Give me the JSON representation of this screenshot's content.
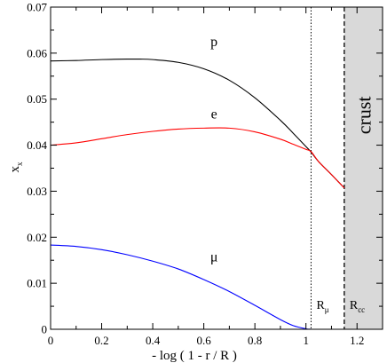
{
  "chart_data": {
    "type": "line",
    "xlabel": "- log ( 1 - r / R )",
    "ylabel": "x",
    "ylabel_sub": "x",
    "xlim": [
      0,
      1.3
    ],
    "ylim": [
      0,
      0.07
    ],
    "x_ticks": [
      0,
      0.2,
      0.4,
      0.6,
      0.8,
      1,
      1.2
    ],
    "x_tick_labels": [
      "0",
      "0.2",
      "0.4",
      "0.6",
      "0.8",
      "1",
      "1.2"
    ],
    "y_ticks": [
      0,
      0.01,
      0.02,
      0.03,
      0.04,
      0.05,
      0.06,
      0.07
    ],
    "y_tick_labels": [
      "0",
      "0.01",
      "0.02",
      "0.03",
      "0.04",
      "0.05",
      "0.06",
      "0.07"
    ],
    "grid": false,
    "series": [
      {
        "name": "p",
        "color": "#000000",
        "x": [
          0,
          0.1,
          0.2,
          0.3,
          0.35,
          0.4,
          0.5,
          0.6,
          0.7,
          0.8,
          0.9,
          0.95,
          1.0,
          1.02,
          1.05,
          1.1,
          1.15
        ],
        "y": [
          0.0583,
          0.0584,
          0.0586,
          0.0587,
          0.0587,
          0.0586,
          0.058,
          0.0566,
          0.0541,
          0.0503,
          0.0454,
          0.0426,
          0.0397,
          0.0385,
          0.0364,
          0.0336,
          0.0307
        ]
      },
      {
        "name": "e",
        "color": "#ff0000",
        "x": [
          0,
          0.1,
          0.2,
          0.3,
          0.4,
          0.5,
          0.6,
          0.7,
          0.8,
          0.9,
          0.95,
          1.0,
          1.02,
          1.05,
          1.1,
          1.15
        ],
        "y": [
          0.04,
          0.0405,
          0.0414,
          0.0423,
          0.043,
          0.0435,
          0.0437,
          0.0437,
          0.0429,
          0.0413,
          0.0402,
          0.0391,
          0.0386,
          0.0364,
          0.0336,
          0.0307
        ]
      },
      {
        "name": "μ",
        "color": "#0000ff",
        "x": [
          0,
          0.1,
          0.2,
          0.3,
          0.4,
          0.5,
          0.6,
          0.7,
          0.8,
          0.9,
          0.95,
          1.0,
          1.02
        ],
        "y": [
          0.0183,
          0.018,
          0.0173,
          0.0162,
          0.0148,
          0.0131,
          0.0108,
          0.0082,
          0.0052,
          0.0021,
          0.0008,
          0.0001,
          0
        ]
      }
    ],
    "markers": [
      {
        "x": 1.02,
        "style": "dotted",
        "label": "R",
        "sub": "μ"
      },
      {
        "x": 1.15,
        "style": "dashed",
        "label": "R",
        "sub": "cc"
      }
    ],
    "shaded_region": {
      "x_from": 1.15,
      "x_to": 1.3,
      "color": "#d9d9d9",
      "label": "crust"
    },
    "series_label_positions": [
      {
        "name": "p",
        "x": 0.64,
        "y": 0.0615
      },
      {
        "name": "e",
        "x": 0.64,
        "y": 0.0458
      },
      {
        "name": "μ",
        "x": 0.64,
        "y": 0.0148
      }
    ]
  }
}
